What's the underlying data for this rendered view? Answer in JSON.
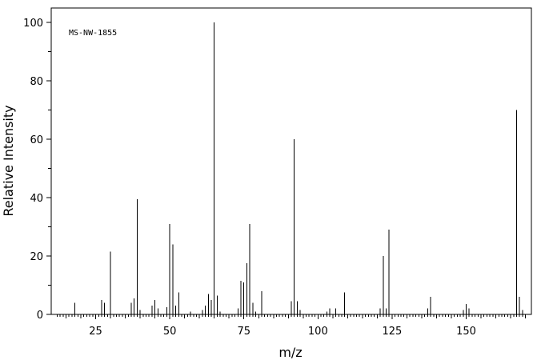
{
  "chart_data": {
    "type": "bar",
    "title": "",
    "annotation": "MS-NW-1855",
    "xlabel": "m/z",
    "ylabel": "Relative Intensity",
    "xlim": [
      10,
      172
    ],
    "ylim": [
      0,
      105
    ],
    "x_tick_labels": [
      "25",
      "50",
      "75",
      "100",
      "125",
      "150"
    ],
    "y_tick_labels": [
      "0",
      "20",
      "40",
      "60",
      "80",
      "100"
    ],
    "x": [
      18,
      27,
      28,
      30,
      37,
      38,
      39,
      40,
      44,
      45,
      46,
      49,
      50,
      51,
      52,
      53,
      57,
      61,
      62,
      63,
      64,
      65,
      66,
      67,
      73,
      74,
      75,
      76,
      77,
      78,
      79,
      81,
      91,
      92,
      93,
      94,
      103,
      104,
      106,
      109,
      121,
      122,
      123,
      124,
      137,
      138,
      149,
      150,
      151,
      167,
      168,
      169
    ],
    "values": [
      4,
      5,
      4,
      21.5,
      4,
      5.5,
      39.5,
      1.5,
      3,
      5,
      2,
      2.5,
      31,
      24,
      3,
      7.5,
      1,
      1.5,
      3,
      7,
      5,
      100,
      6.5,
      1,
      2,
      11.5,
      11,
      17.5,
      31,
      4,
      1,
      8,
      4.5,
      60,
      4.5,
      1.5,
      1,
      2,
      2,
      7.5,
      2,
      20,
      2,
      29,
      2,
      6,
      1.5,
      3.5,
      2,
      70,
      6,
      1.5
    ]
  }
}
